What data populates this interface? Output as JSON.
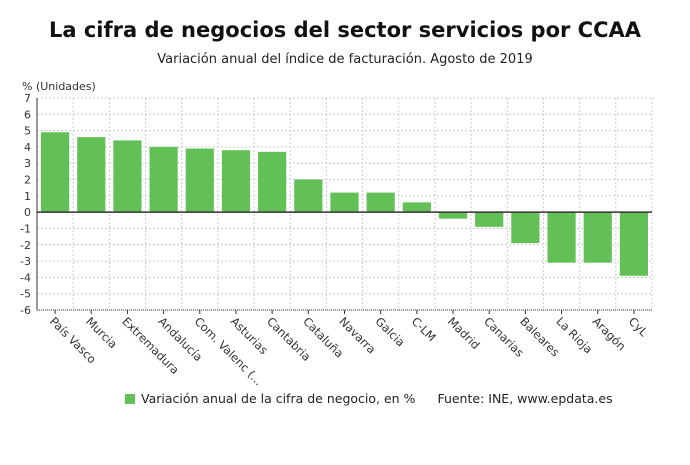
{
  "title": "La cifra de negocios del sector servicios por CCAA",
  "subtitle": "Variación anual del índice de facturación. Agosto de 2019",
  "source": "Fuente: INE, www.epdata.es",
  "chart_data": {
    "type": "bar",
    "ylabel": "% (Unidades)",
    "ylim": [
      -6,
      7
    ],
    "yticks": [
      7,
      6,
      5,
      4,
      3,
      2,
      1,
      0,
      -1,
      -2,
      -3,
      -4,
      -5,
      -6
    ],
    "grid": true,
    "legend_position": "bottom",
    "bar_color": "#62c057",
    "categories": [
      "País Vasco",
      "Murcia",
      "Extremadura",
      "Andalucía",
      "Com. Valenc (...",
      "Asturias",
      "Cantabria",
      "Cataluña",
      "Navarra",
      "Galcia",
      "C-LM",
      "Madrid",
      "Canarias",
      "Baleares",
      "La Rioja",
      "Aragón",
      "CyL"
    ],
    "series": [
      {
        "name": "Variación anual de la cifra de negocio, en %",
        "values": [
          4.9,
          4.6,
          4.4,
          4.0,
          3.9,
          3.8,
          3.7,
          2.0,
          1.2,
          1.2,
          0.6,
          -0.4,
          -0.9,
          -1.9,
          -3.1,
          -3.1,
          -3.9
        ]
      }
    ]
  }
}
